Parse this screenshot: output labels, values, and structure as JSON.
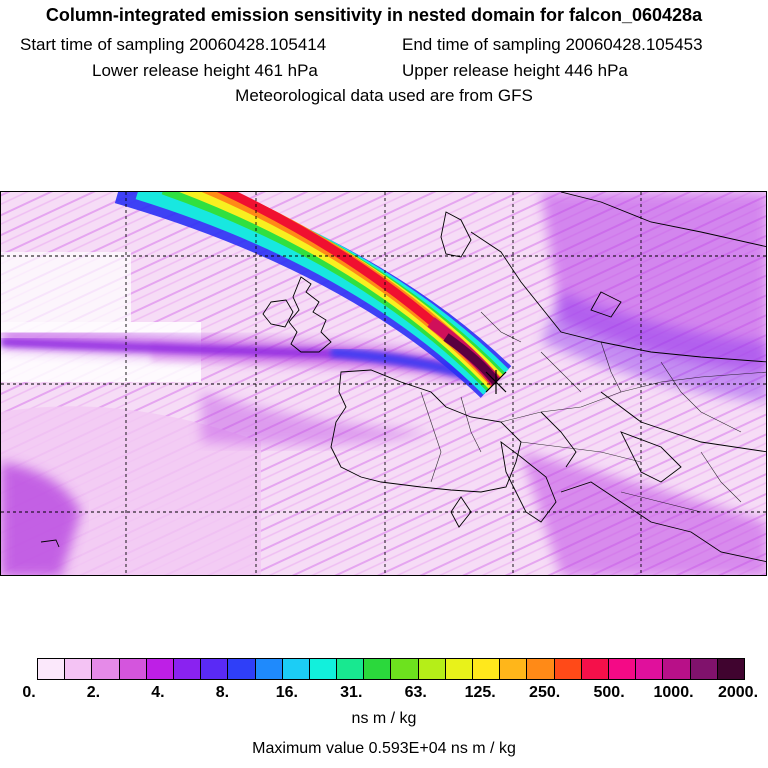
{
  "header": {
    "title": "Column-integrated emission sensitivity in nested domain for falcon_060428a",
    "start_time": "Start time of sampling 20060428.105414",
    "end_time": "End time of sampling 20060428.105453",
    "lower_height": "Lower release height  461 hPa",
    "upper_height": "Upper release height  446 hPa",
    "met_data": "Meteorological data used are from GFS"
  },
  "colorbar": {
    "colors": [
      "#fbe8fb",
      "#f4c3f4",
      "#e58ae8",
      "#d455dd",
      "#be1fe6",
      "#8a22f0",
      "#5a2af5",
      "#2f3ff8",
      "#1f8afc",
      "#1ccdf5",
      "#12f0dc",
      "#18e890",
      "#2bd83c",
      "#6de21e",
      "#b5ee18",
      "#e8f21a",
      "#ffe81c",
      "#ffb61a",
      "#ff8a17",
      "#ff4a18",
      "#f5104a",
      "#f40a86",
      "#e0109c",
      "#b81088",
      "#80126c",
      "#40042f"
    ],
    "tick_labels": [
      "0.",
      "2.",
      "4.",
      "8.",
      "16.",
      "31.",
      "63.",
      "125.",
      "250.",
      "500.",
      "1000.",
      "2000."
    ],
    "unit": "ns m / kg",
    "max_value": "Maximum value  0.593E+04 ns m / kg"
  },
  "map": {
    "receptor_marker": "x-marker",
    "plume_colors": {
      "outer": "#d040e8",
      "mid": "#2a30f5",
      "core_cyan": "#18e8e0",
      "core_green": "#30e040",
      "core_yellow": "#f8f020",
      "core_red": "#f01030",
      "core_dark": "#5a0040"
    }
  }
}
